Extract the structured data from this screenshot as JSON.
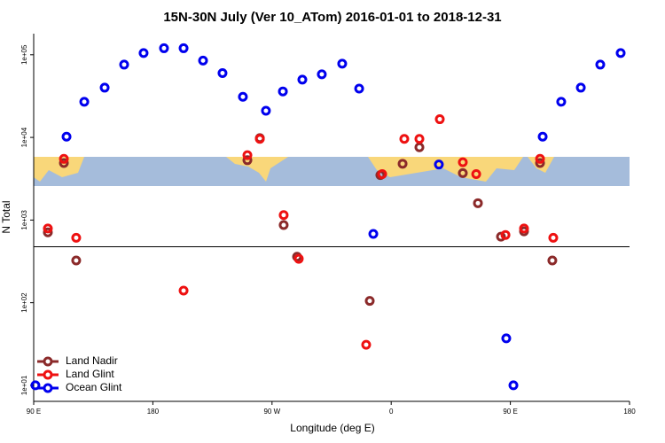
{
  "chart_data": {
    "type": "scatter",
    "log_y": true,
    "title": "15N-30N July (Ver 10_ATom)   2016-01-01 to 2018-12-31",
    "x_label": "Longitude (deg E)",
    "y_label": "N Total",
    "xlim": [
      90,
      540
    ],
    "ylim": [
      6.4,
      180000
    ],
    "xticks": [
      {
        "value": 90,
        "label": "90 E"
      },
      180,
      {
        "value": 270,
        "label": "90 W"
      },
      {
        "value": 360,
        "label": "0"
      },
      {
        "value": 450,
        "label": "90 E"
      },
      {
        "value": 540,
        "label": "180"
      }
    ],
    "yticks": [
      {
        "value": 10,
        "label": "1e+01"
      },
      {
        "value": 100,
        "label": "1e+02"
      },
      {
        "value": 1000,
        "label": "1e+03"
      },
      {
        "value": 10000,
        "label": "1e+04"
      },
      {
        "value": 100000,
        "label": "1e+05"
      }
    ],
    "hline": 475,
    "legend": "bottom-left",
    "series": [
      {
        "name": "Land Nadir",
        "color": "#8b2a2a",
        "x": [
          100.7,
          112.8,
          122.1,
          251.4,
          260.8,
          278.8,
          288.9,
          343.8,
          351.8,
          368.6,
          381.3,
          414.1,
          425.5,
          442.9,
          460.3,
          472.4,
          481.7
        ],
        "values": [
          710,
          4900,
          324,
          5300,
          9800,
          870,
          360,
          105,
          3500,
          4800,
          7600,
          3700,
          1600,
          630,
          730,
          4900,
          324
        ]
      },
      {
        "name": "Land Glint",
        "color": "#ee1111",
        "x": [
          100.7,
          112.8,
          122.1,
          203.2,
          251.4,
          260.8,
          278.8,
          290.2,
          341.1,
          353.2,
          369.9,
          381.3,
          396.7,
          414.1,
          424.2,
          446.3,
          460.3,
          472.4,
          482.4
        ],
        "values": [
          790,
          5500,
          610,
          140,
          6100,
          9600,
          1150,
          340,
          31,
          3600,
          9600,
          9600,
          16600,
          5000,
          3600,
          660,
          790,
          5500,
          610
        ]
      },
      {
        "name": "Ocean Glint",
        "color": "#0000ee",
        "x": [
          91.3,
          114.8,
          128.2,
          143.6,
          158.3,
          173,
          188.4,
          203.2,
          217.9,
          232.6,
          248,
          265.4,
          278.2,
          292.9,
          307.6,
          323,
          335.8,
          346.5,
          396,
          446.9,
          452.3,
          474.4,
          488.4,
          503.2,
          517.9,
          533.3
        ],
        "values": [
          10,
          10200,
          27000,
          40000,
          76000,
          105000,
          120000,
          120000,
          85000,
          60000,
          31000,
          21000,
          36000,
          50000,
          58000,
          78000,
          39000,
          680,
          4700,
          37,
          10,
          10200,
          27000,
          40000,
          76000,
          105000
        ]
      }
    ]
  }
}
